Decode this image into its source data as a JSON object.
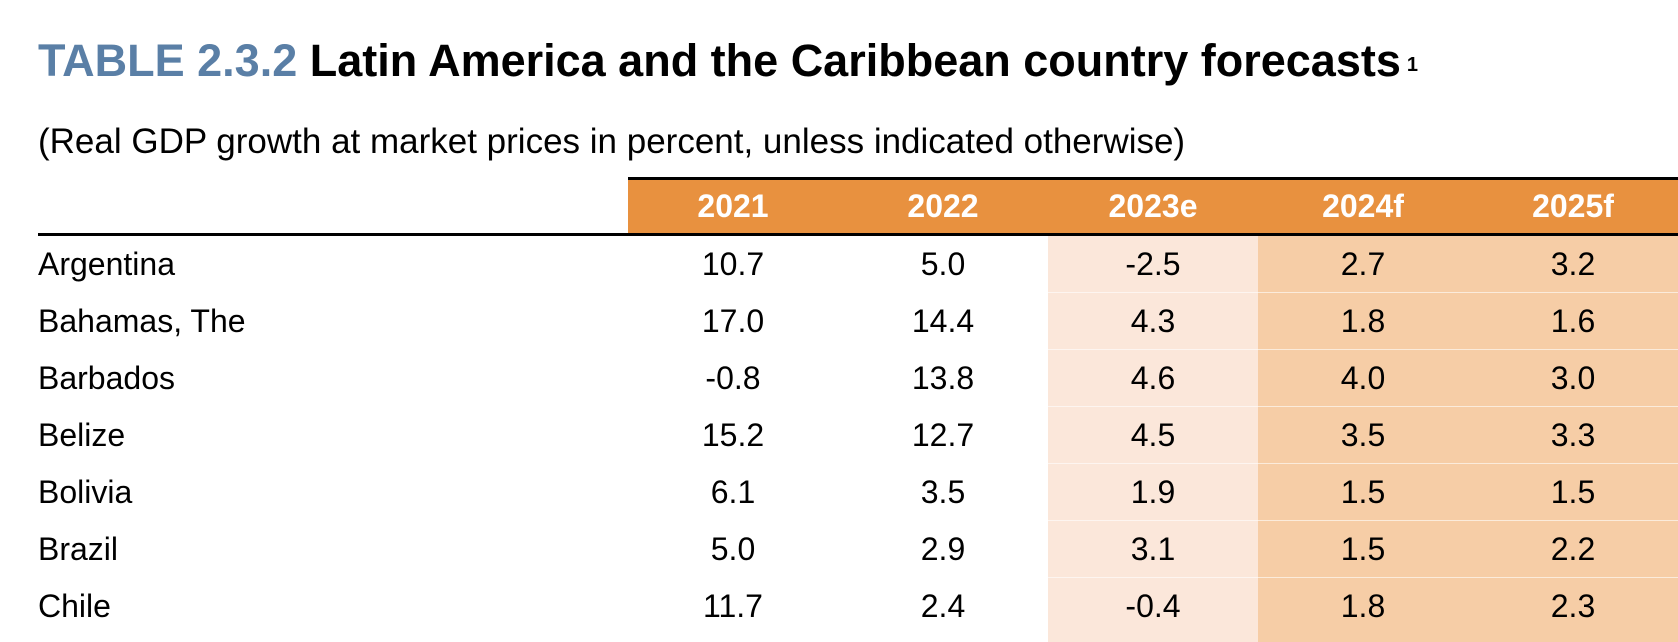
{
  "title": {
    "label": "TABLE 2.3.2",
    "main": "Latin America and the Caribbean country forecasts",
    "footnote": "1"
  },
  "subtitle": "(Real GDP growth at market prices in percent, unless indicated otherwise)",
  "colors": {
    "title_label": "#5a7fa6",
    "header_band": "#e8913f",
    "estimate_column": "#fbe7da",
    "forecast_columns": "#f6cda6"
  },
  "table": {
    "columns": [
      "2021",
      "2022",
      "2023e",
      "2024f",
      "2025f"
    ],
    "rows": [
      {
        "country": "Argentina",
        "values": [
          "10.7",
          "5.0",
          "-2.5",
          "2.7",
          "3.2"
        ]
      },
      {
        "country": "Bahamas, The",
        "values": [
          "17.0",
          "14.4",
          "4.3",
          "1.8",
          "1.6"
        ]
      },
      {
        "country": "Barbados",
        "values": [
          "-0.8",
          "13.8",
          "4.6",
          "4.0",
          "3.0"
        ]
      },
      {
        "country": "Belize",
        "values": [
          "15.2",
          "12.7",
          "4.5",
          "3.5",
          "3.3"
        ]
      },
      {
        "country": "Bolivia",
        "values": [
          "6.1",
          "3.5",
          "1.9",
          "1.5",
          "1.5"
        ]
      },
      {
        "country": "Brazil",
        "values": [
          "5.0",
          "2.9",
          "3.1",
          "1.5",
          "2.2"
        ]
      },
      {
        "country": "Chile",
        "values": [
          "11.7",
          "2.4",
          "-0.4",
          "1.8",
          "2.3"
        ]
      }
    ]
  }
}
